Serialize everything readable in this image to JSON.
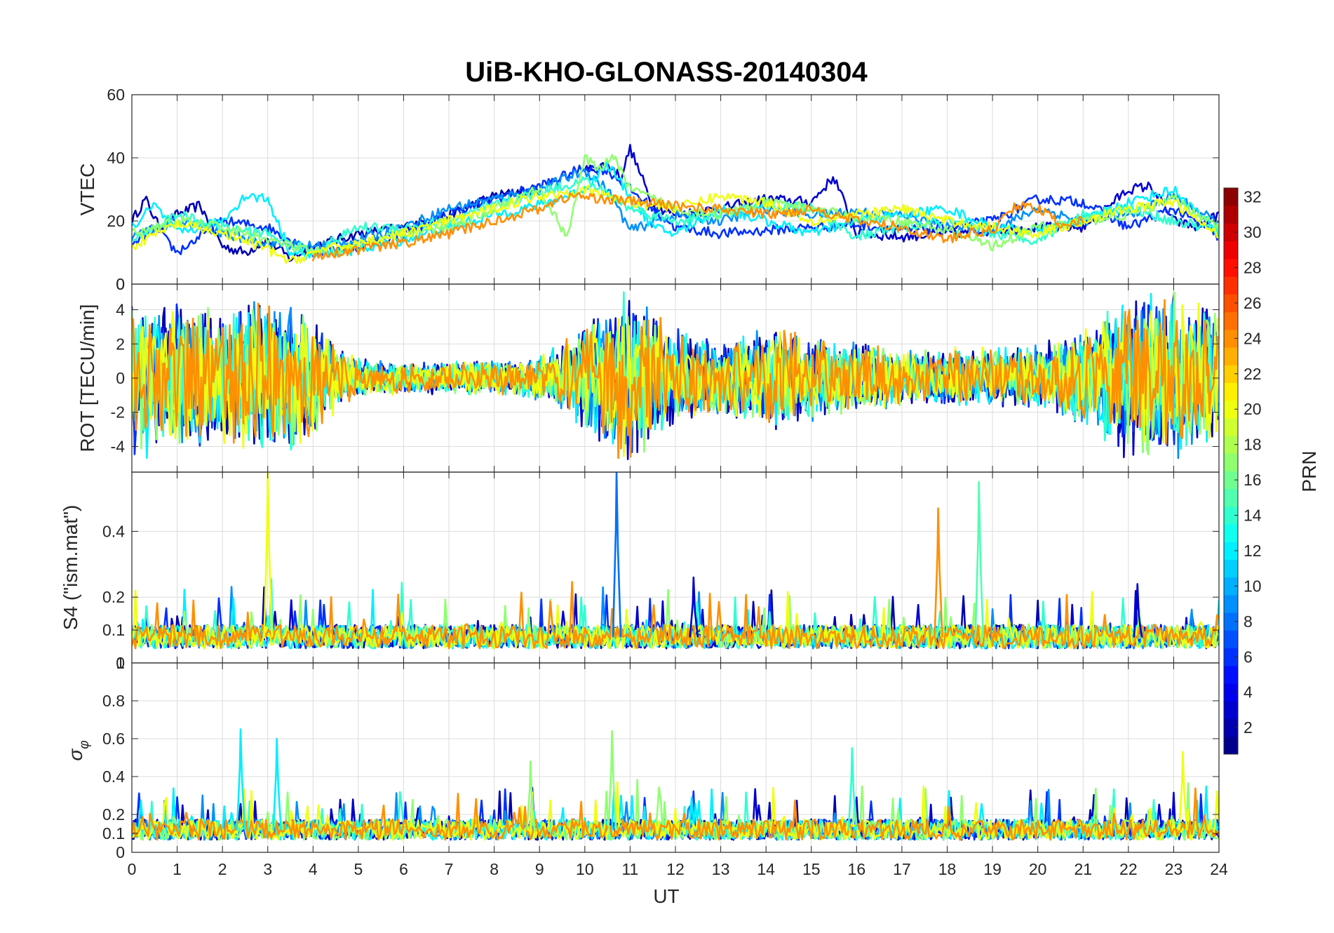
{
  "chart_data": {
    "type": "line",
    "title": "UiB-KHO-GLONASS-20140304",
    "xlabel": "UT",
    "xlim": [
      0,
      24
    ],
    "xticks": [
      0,
      1,
      2,
      3,
      4,
      5,
      6,
      7,
      8,
      9,
      10,
      11,
      12,
      13,
      14,
      15,
      16,
      17,
      18,
      19,
      20,
      21,
      22,
      23,
      24
    ],
    "xtick_labels": [
      "0",
      "1",
      "2",
      "3",
      "4",
      "5",
      "6",
      "7",
      "8",
      "9",
      "10",
      "11",
      "12",
      "13",
      "14",
      "15",
      "16",
      "17",
      "18",
      "19",
      "20",
      "21",
      "22",
      "23",
      "24"
    ],
    "grid": true,
    "panels": [
      {
        "id": "vtec",
        "ylabel": "VTEC",
        "ylim": [
          0,
          60
        ],
        "yticks": [
          0,
          20,
          40,
          60
        ],
        "ytick_labels": [
          "0",
          "20",
          "40",
          "60"
        ],
        "series": [
          {
            "name": "PRN 2",
            "prn": 2,
            "x": [
              0,
              0.3,
              0.6,
              1,
              1.5,
              2,
              2.5,
              3,
              3.5,
              4,
              5,
              6,
              7,
              8,
              9
            ],
            "y": [
              20,
              27,
              18,
              22,
              25,
              12,
              10,
              14,
              8,
              12,
              16,
              18,
              22,
              28,
              30
            ]
          },
          {
            "name": "PRN 3",
            "prn": 3,
            "x": [
              10,
              10.5,
              10.8,
              11,
              11.5,
              12,
              13,
              14,
              15,
              15.5,
              16,
              17,
              18,
              19,
              20,
              21,
              22,
              22.5,
              23,
              23.5,
              24
            ],
            "y": [
              36,
              38,
              34,
              43,
              25,
              22,
              24,
              27,
              26,
              34,
              16,
              15,
              16,
              17,
              18,
              18,
              30,
              31,
              20,
              18,
              22
            ]
          },
          {
            "name": "PRN 6",
            "prn": 6,
            "x": [
              0,
              0.5,
              1,
              2,
              3,
              4,
              5,
              6,
              7,
              8,
              9,
              10,
              10.5,
              11,
              12,
              13,
              14,
              15,
              16,
              17,
              18,
              19,
              20,
              21,
              22,
              23,
              24
            ],
            "y": [
              12,
              18,
              10,
              20,
              18,
              10,
              12,
              16,
              22,
              27,
              31,
              37,
              36,
              30,
              18,
              16,
              17,
              18,
              19,
              17,
              18,
              20,
              27,
              26,
              18,
              24,
              15
            ]
          },
          {
            "name": "PRN 9",
            "prn": 9,
            "x": [
              0,
              1,
              2,
              3,
              4,
              5,
              6,
              7,
              8,
              9,
              10,
              10.5,
              11,
              12,
              13,
              14,
              15,
              16,
              17,
              18,
              19,
              20,
              21,
              22,
              23,
              24
            ],
            "y": [
              15,
              20,
              16,
              13,
              12,
              14,
              18,
              24,
              27,
              30,
              36,
              30,
              17,
              22,
              20,
              24,
              22,
              23,
              22,
              18,
              17,
              24,
              20,
              22,
              28,
              19
            ]
          },
          {
            "name": "PRN 12",
            "prn": 12,
            "x": [
              0,
              0.5,
              1,
              2,
              2.5,
              3,
              3.5,
              4,
              5,
              6,
              7,
              8,
              9,
              10,
              10.5,
              11,
              11.5,
              12,
              13,
              14,
              15,
              16,
              17,
              18,
              19,
              20,
              21,
              22,
              23,
              24
            ],
            "y": [
              18,
              25,
              16,
              20,
              28,
              27,
              10,
              9,
              11,
              14,
              18,
              22,
              25,
              30,
              38,
              28,
              18,
              16,
              24,
              20,
              16,
              20,
              22,
              24,
              18,
              17,
              20,
              26,
              30,
              16
            ]
          },
          {
            "name": "PRN 14",
            "prn": 14,
            "x": [
              0,
              1,
              2,
              3,
              4,
              5,
              6,
              7,
              8,
              9,
              10,
              11,
              12,
              13,
              14,
              15,
              16,
              17,
              18,
              19,
              20,
              21,
              22,
              23,
              24
            ],
            "y": [
              14,
              22,
              18,
              16,
              10,
              18,
              18,
              20,
              25,
              29,
              33,
              24,
              20,
              22,
              25,
              24,
              15,
              18,
              20,
              16,
              14,
              22,
              24,
              20,
              17
            ]
          },
          {
            "name": "PRN 17",
            "prn": 17,
            "x": [
              0,
              1,
              2,
              3,
              4,
              5,
              6,
              7,
              8,
              9,
              9.6,
              10,
              10.3,
              10.6,
              11,
              12,
              13,
              14,
              15,
              16,
              17,
              18,
              19,
              20,
              21,
              22,
              23,
              24
            ],
            "y": [
              16,
              20,
              18,
              14,
              10,
              12,
              16,
              18,
              24,
              30,
              15,
              40,
              36,
              41,
              30,
              24,
              22,
              26,
              24,
              21,
              20,
              17,
              12,
              18,
              20,
              22,
              27,
              18
            ]
          },
          {
            "name": "PRN 20",
            "prn": 20,
            "x": [
              0,
              1,
              2,
              3,
              3.5,
              4,
              5,
              6,
              7,
              8,
              9,
              10,
              11,
              12,
              13,
              14,
              15,
              16,
              17,
              18,
              19,
              20,
              21,
              22,
              23,
              24
            ],
            "y": [
              12,
              19,
              16,
              11,
              7,
              10,
              13,
              16,
              20,
              24,
              28,
              30,
              26,
              24,
              28,
              26,
              20,
              22,
              24,
              20,
              18,
              16,
              20,
              24,
              26,
              15
            ]
          },
          {
            "name": "PRN 24",
            "prn": 24,
            "x": [
              4,
              5,
              6,
              7,
              8,
              9,
              9.7,
              14.2,
              15,
              16,
              17,
              18,
              18.5,
              19,
              19.5,
              20,
              20.5,
              21
            ],
            "y": [
              9,
              11,
              13,
              16,
              20,
              24,
              28,
              22,
              24,
              20,
              18,
              14,
              16,
              17,
              25,
              24,
              19,
              20
            ]
          }
        ]
      },
      {
        "id": "rot",
        "ylabel": "ROT [TECU/min]",
        "ylim": [
          -5.5,
          5.5
        ],
        "yticks": [
          -4,
          -2,
          0,
          2,
          4
        ],
        "ytick_labels": [
          "-4",
          "-2",
          "0",
          "2",
          "4"
        ],
        "top_label": "0",
        "amplitude_by_hour": [
          4.8,
          4.6,
          4.2,
          5.5,
          3.6,
          1.2,
          1.0,
          1.0,
          1.1,
          1.4,
          3.2,
          5.5,
          3.0,
          2.4,
          3.2,
          2.6,
          2.2,
          1.8,
          1.8,
          2.0,
          2.0,
          3.0,
          5.0,
          5.2,
          4.5
        ],
        "series_prns": [
          2,
          3,
          6,
          9,
          12,
          14,
          17,
          20,
          24
        ]
      },
      {
        "id": "s4",
        "ylabel": "S4 (\"ism.mat\")",
        "ylim": [
          0,
          0.58
        ],
        "yticks": [
          0,
          0.1,
          0.2,
          0.4
        ],
        "ytick_labels": [
          "0",
          "0.1",
          "0.2",
          "0.4"
        ],
        "baseline": 0.08,
        "spikes": [
          {
            "prn": 20,
            "x": 3.0,
            "y": 0.58
          },
          {
            "prn": 8,
            "x": 10.7,
            "y": 0.58
          },
          {
            "prn": 24,
            "x": 17.8,
            "y": 0.47
          },
          {
            "prn": 15,
            "x": 18.7,
            "y": 0.55
          },
          {
            "prn": 3,
            "x": 12.4,
            "y": 0.26
          },
          {
            "prn": 3,
            "x": 22.2,
            "y": 0.24
          }
        ]
      },
      {
        "id": "sigma",
        "ylabel": "σφ",
        "ylabel_main": "σ",
        "ylabel_sub": "φ",
        "ylim": [
          0,
          1
        ],
        "yticks": [
          0,
          0.1,
          0.2,
          0.4,
          0.6,
          0.8
        ],
        "ytick_labels": [
          "0",
          "0.1",
          "0.2",
          "0.4",
          "0.6",
          "0.8"
        ],
        "top_label": "1",
        "baseline": 0.12,
        "spikes": [
          {
            "prn": 12,
            "x": 2.4,
            "y": 0.65
          },
          {
            "prn": 12,
            "x": 3.2,
            "y": 0.6
          },
          {
            "prn": 17,
            "x": 10.6,
            "y": 0.64
          },
          {
            "prn": 17,
            "x": 8.8,
            "y": 0.48
          },
          {
            "prn": 14,
            "x": 15.9,
            "y": 0.55
          },
          {
            "prn": 20,
            "x": 23.2,
            "y": 0.53
          }
        ]
      }
    ],
    "colorbar": {
      "label": "PRN",
      "range": [
        1,
        32
      ],
      "ticks": [
        2,
        4,
        6,
        8,
        10,
        12,
        14,
        16,
        18,
        20,
        22,
        24,
        26,
        28,
        30,
        32
      ],
      "tick_labels": [
        "2",
        "4",
        "6",
        "8",
        "10",
        "12",
        "14",
        "16",
        "18",
        "20",
        "22",
        "24",
        "26",
        "28",
        "30",
        "32"
      ],
      "colormap": "jet"
    }
  }
}
